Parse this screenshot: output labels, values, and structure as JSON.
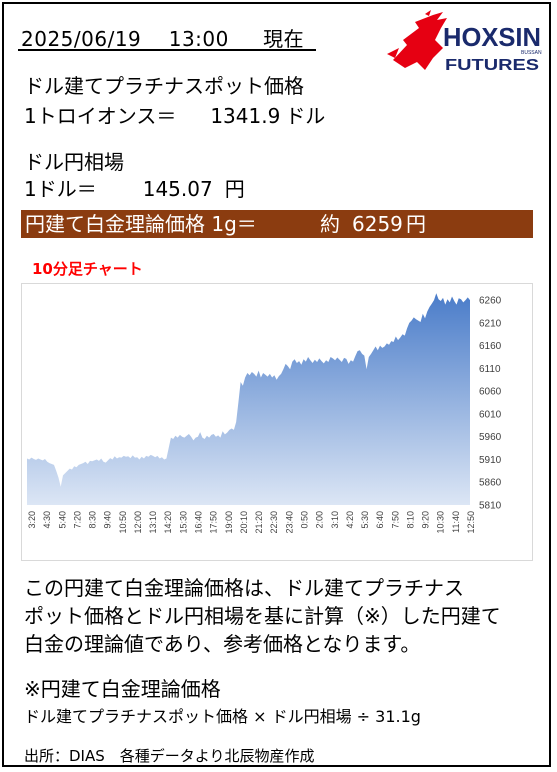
{
  "header": {
    "date": "2025/06/19",
    "time": "13:00",
    "status": "現在"
  },
  "logo": {
    "name": "HOXSIN",
    "sub": "FUTURES",
    "small": "BUSSAN",
    "color_red": "#e60012",
    "color_navy": "#1a2a6c"
  },
  "platinum": {
    "label": "ドル建てプラチナスポット価格",
    "unit_label": "1トロイオンス＝",
    "value": "1341.9",
    "currency": "ドル"
  },
  "fx": {
    "label": "ドル円相場",
    "unit_label": "1ドル＝",
    "value": "145.07",
    "currency": "円"
  },
  "banner": {
    "label": "円建て白金理論価格 1g＝",
    "approx": "約",
    "value": "6259",
    "currency": "円",
    "color": "#8b3c10"
  },
  "chart_title": "10分足チャート",
  "chart_data": {
    "type": "area",
    "title": "10分足チャート",
    "ylim": [
      5810,
      6280
    ],
    "yticks": [
      5810,
      5860,
      5910,
      5960,
      6010,
      6060,
      6110,
      6160,
      6210,
      6260
    ],
    "xticks": [
      "3:20",
      "4:30",
      "5:40",
      "7:20",
      "8:30",
      "9:40",
      "10:50",
      "12:00",
      "13:10",
      "14:20",
      "15:30",
      "16:40",
      "17:50",
      "19:00",
      "20:10",
      "21:20",
      "22:30",
      "23:40",
      "0:50",
      "2:00",
      "3:10",
      "4:20",
      "5:30",
      "6:40",
      "7:50",
      "8:10",
      "9:20",
      "10:30",
      "11:40",
      "12:50"
    ],
    "grid": false,
    "legend": "none",
    "fill_color_top": "#4a7cc9",
    "fill_color_bottom": "#dce6f5",
    "values": [
      5912,
      5910,
      5914,
      5911,
      5909,
      5912,
      5910,
      5908,
      5911,
      5905,
      5902,
      5900,
      5898,
      5885,
      5870,
      5850,
      5875,
      5880,
      5885,
      5890,
      5888,
      5895,
      5893,
      5898,
      5900,
      5902,
      5905,
      5900,
      5907,
      5906,
      5908,
      5910,
      5907,
      5912,
      5905,
      5903,
      5908,
      5913,
      5910,
      5917,
      5912,
      5915,
      5914,
      5918,
      5916,
      5917,
      5913,
      5919,
      5914,
      5915,
      5910,
      5916,
      5912,
      5918,
      5916,
      5920,
      5918,
      5915,
      5918,
      5912,
      5915,
      5910,
      5912,
      5935,
      5958,
      5955,
      5962,
      5958,
      5964,
      5960,
      5958,
      5962,
      5966,
      5960,
      5952,
      5958,
      5960,
      5970,
      5958,
      5955,
      5962,
      5958,
      5964,
      5966,
      5960,
      5963,
      5958,
      5972,
      5965,
      5969,
      5975,
      5978,
      5975,
      5992,
      6035,
      6080,
      6072,
      6090,
      6100,
      6095,
      6102,
      6098,
      6092,
      6105,
      6090,
      6100,
      6096,
      6092,
      6098,
      6090,
      6095,
      6085,
      6093,
      6098,
      6108,
      6120,
      6115,
      6108,
      6125,
      6130,
      6122,
      6126,
      6118,
      6130,
      6125,
      6135,
      6128,
      6122,
      6129,
      6124,
      6132,
      6126,
      6121,
      6128,
      6124,
      6135,
      6132,
      6128,
      6134,
      6129,
      6124,
      6133,
      6131,
      6120,
      6128,
      6125,
      6137,
      6148,
      6150,
      6142,
      6138,
      6108,
      6135,
      6142,
      6150,
      6158,
      6150,
      6160,
      6155,
      6158,
      6165,
      6162,
      6170,
      6168,
      6180,
      6172,
      6178,
      6185,
      6182,
      6198,
      6210,
      6215,
      6222,
      6218,
      6215,
      6212,
      6230,
      6220,
      6235,
      6245,
      6252,
      6260,
      6275,
      6262,
      6258,
      6265,
      6250,
      6262,
      6255,
      6268,
      6258,
      6250,
      6264,
      6262,
      6255,
      6260,
      6266,
      6260
    ]
  },
  "explanation": {
    "line1": "この円建て白金理論価格は、ドル建てプラチナス",
    "line2": "ポット価格とドル円相場を基に計算（※）した円建て",
    "line3": "白金の理論値であり、参考価格となります。"
  },
  "formula": {
    "title": "※円建て白金理論価格",
    "text": "ドル建てプラチナスポット価格 × ドル円相場 ÷ 31.1g"
  },
  "source": "出所：DIAS　各種データより北辰物産作成"
}
